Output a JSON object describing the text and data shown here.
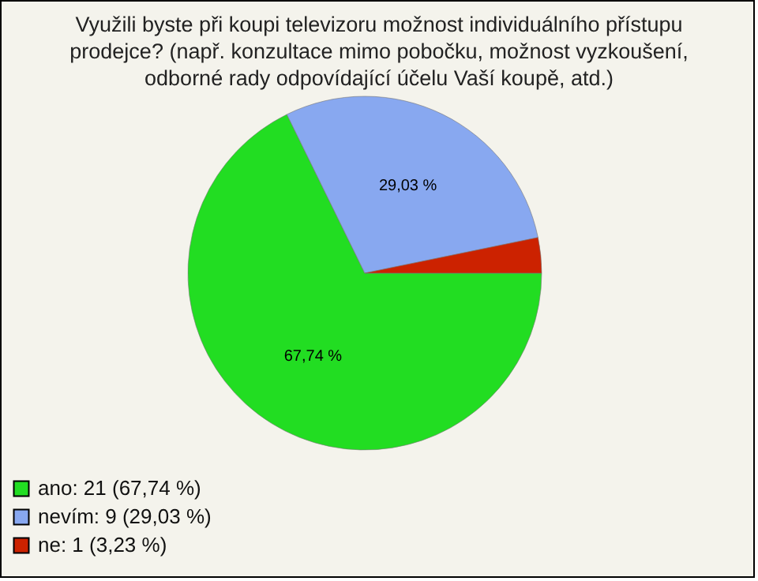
{
  "chart_data": {
    "type": "pie",
    "title": "Využili byste při koupi televizoru možnost individuálního přístupu prodejce? (např. konzultace mimo pobočku, možnost vyzkoušení, odborné rady odpovídající účelu Vaší koupě, atd.)",
    "categories": [
      "ano: 21 (67,74 %)",
      "nevím: 9 (29,03 %)",
      "ne: 1 (3,23 %)"
    ],
    "values": [
      67.74,
      29.03,
      3.23
    ],
    "colors": [
      "#22dd22",
      "#88a8f0",
      "#cc2200"
    ],
    "value_labels": [
      "67,74 %",
      "29,03 %",
      null
    ],
    "legend": "bottom left"
  }
}
